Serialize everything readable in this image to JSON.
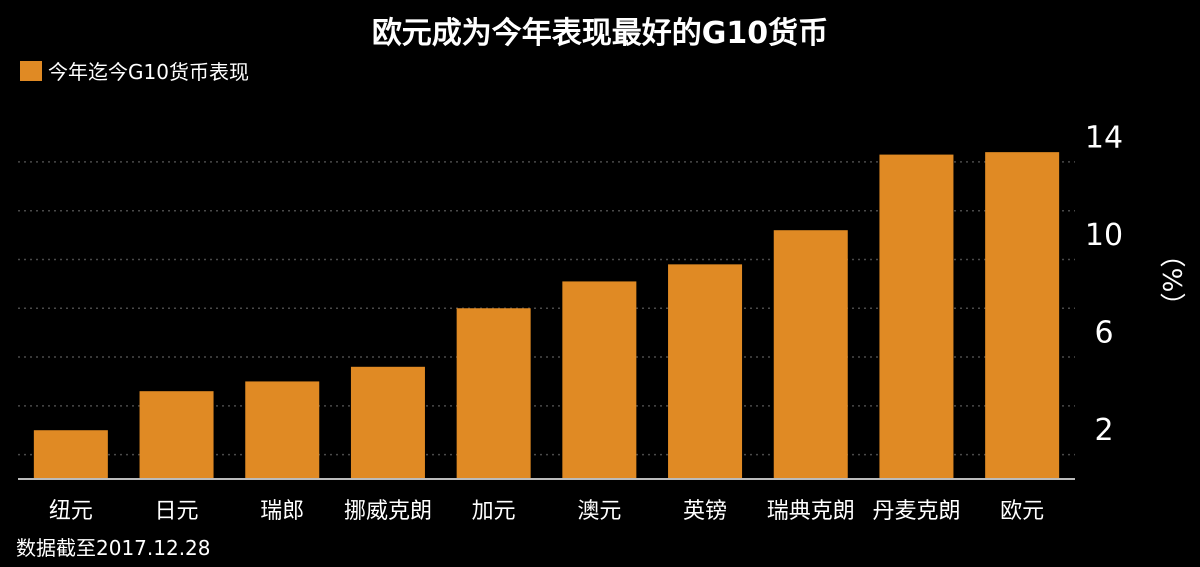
{
  "colors": {
    "bar": "#E08A24",
    "background": "#000000",
    "grid": "#4a4a4a",
    "axis": "#bbbbbb",
    "text": "#ffffff"
  },
  "chart_data": {
    "type": "bar",
    "title": "欧元成为今年表现最好的G10货币",
    "categories": [
      "纽元",
      "日元",
      "瑞郎",
      "挪威克朗",
      "加元",
      "澳元",
      "英镑",
      "瑞典克朗",
      "丹麦克朗",
      "欧元"
    ],
    "series": [
      {
        "name": "今年迄今G10货币表现",
        "values": [
          2.0,
          3.6,
          4.0,
          4.6,
          7.0,
          8.1,
          8.8,
          10.2,
          13.3,
          13.4
        ]
      }
    ],
    "ylabel": "（%）",
    "yticks": [
      2,
      6,
      10,
      14
    ],
    "ylim": [
      0,
      14.8
    ],
    "grid": true,
    "legend_position": "top-left",
    "y_axis_position": "right"
  },
  "footnote": "数据截至2017.12.28"
}
